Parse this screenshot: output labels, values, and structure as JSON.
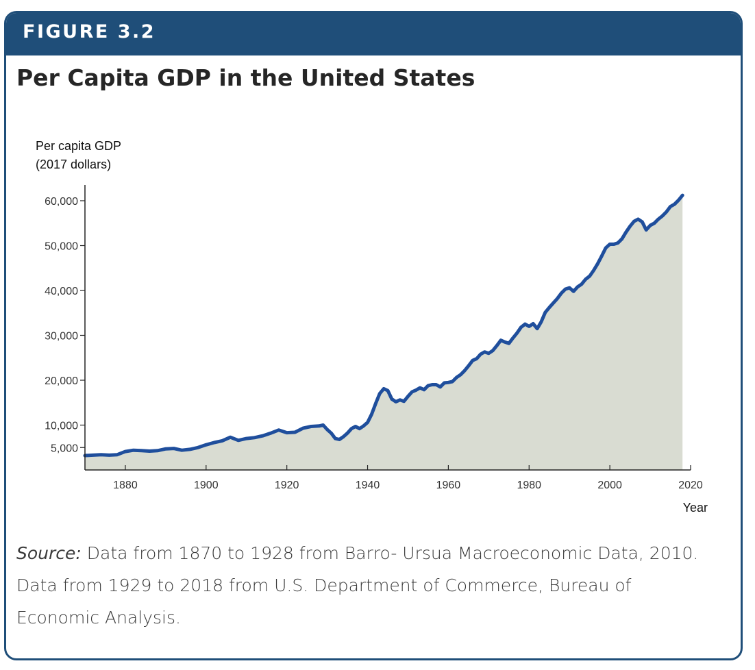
{
  "figure_label": "FIGURE 3.2",
  "title": "Per Capita GDP in the United States",
  "source_label": "Source:",
  "source_text": " Data from 1870 to 1928 from Barro- Ursua Macroeconomic Data, 2010. Data from 1929 to 2018 from U.S. Department of Commerce, Bureau of Economic Analysis.",
  "colors": {
    "banner": "#1f4e79",
    "line": "#1f4e9c",
    "area": "#d9dcd2",
    "axis": "#222222"
  },
  "chart_data": {
    "type": "area",
    "ylabel_line1": "Per capita GDP",
    "ylabel_line2": "(2017 dollars)",
    "xlabel": "Year",
    "xlim": [
      1870,
      2020
    ],
    "ylim": [
      0,
      64000
    ],
    "x_ticks": [
      1880,
      1900,
      1920,
      1940,
      1960,
      1980,
      2000,
      2020
    ],
    "x_tick_labels": [
      "1880",
      "1900",
      "1920",
      "1940",
      "1960",
      "1980",
      "2000",
      "2020"
    ],
    "y_ticks": [
      5000,
      10000,
      20000,
      30000,
      40000,
      50000,
      60000
    ],
    "y_tick_labels": [
      "5,000",
      "10,000",
      "20,000",
      "30,000",
      "40,000",
      "50,000",
      "60,000"
    ],
    "grid": false,
    "series": [
      {
        "x": [
          1870,
          1872,
          1874,
          1876,
          1878,
          1880,
          1882,
          1884,
          1886,
          1888,
          1890,
          1892,
          1894,
          1896,
          1898,
          1900,
          1902,
          1904,
          1906,
          1908,
          1910,
          1912,
          1914,
          1916,
          1918,
          1920,
          1922,
          1924,
          1926,
          1928,
          1929,
          1930,
          1931,
          1932,
          1933,
          1934,
          1935,
          1936,
          1937,
          1938,
          1939,
          1940,
          1941,
          1942,
          1943,
          1944,
          1945,
          1946,
          1947,
          1948,
          1949,
          1950,
          1951,
          1952,
          1953,
          1954,
          1955,
          1956,
          1957,
          1958,
          1959,
          1960,
          1961,
          1962,
          1963,
          1964,
          1965,
          1966,
          1967,
          1968,
          1969,
          1970,
          1971,
          1972,
          1973,
          1974,
          1975,
          1976,
          1977,
          1978,
          1979,
          1980,
          1981,
          1982,
          1983,
          1984,
          1985,
          1986,
          1987,
          1988,
          1989,
          1990,
          1991,
          1992,
          1993,
          1994,
          1995,
          1996,
          1997,
          1998,
          1999,
          2000,
          2001,
          2002,
          2003,
          2004,
          2005,
          2006,
          2007,
          2008,
          2009,
          2010,
          2011,
          2012,
          2013,
          2014,
          2015,
          2016,
          2017,
          2018
        ],
        "y": [
          3200,
          3300,
          3400,
          3300,
          3400,
          4100,
          4400,
          4300,
          4200,
          4300,
          4700,
          4800,
          4400,
          4600,
          5000,
          5600,
          6100,
          6500,
          7300,
          6600,
          7000,
          7200,
          7600,
          8200,
          8900,
          8300,
          8400,
          9300,
          9700,
          9800,
          10000,
          9000,
          8200,
          7000,
          6800,
          7400,
          8200,
          9200,
          9700,
          9200,
          9800,
          10600,
          12400,
          14800,
          17000,
          18100,
          17700,
          15800,
          15200,
          15600,
          15300,
          16400,
          17400,
          17800,
          18300,
          17900,
          18800,
          19000,
          19000,
          18500,
          19400,
          19500,
          19700,
          20600,
          21200,
          22100,
          23200,
          24400,
          24800,
          25800,
          26300,
          26000,
          26600,
          27700,
          28900,
          28500,
          28200,
          29400,
          30500,
          31800,
          32500,
          32000,
          32600,
          31500,
          33000,
          35100,
          36200,
          37200,
          38200,
          39400,
          40300,
          40600,
          39800,
          40800,
          41400,
          42500,
          43200,
          44500,
          46000,
          47700,
          49500,
          50300,
          50300,
          50600,
          51500,
          53000,
          54300,
          55400,
          55900,
          55300,
          53500,
          54500,
          55000,
          55900,
          56600,
          57500,
          58700,
          59200,
          60100,
          61200
        ]
      }
    ]
  }
}
